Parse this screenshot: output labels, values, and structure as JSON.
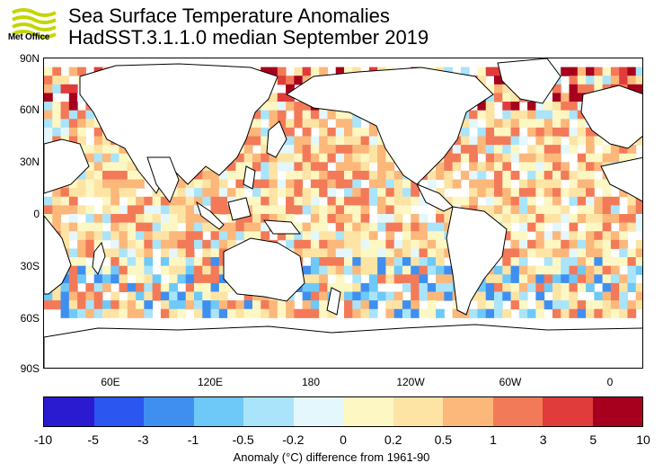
{
  "logo": {
    "text": "Met Office",
    "color": "#c4d600"
  },
  "title": {
    "line1": "Sea Surface Temperature Anomalies",
    "line2": "HadSST.3.1.1.0 median September 2019"
  },
  "map": {
    "lat_labels": [
      "90N",
      "60N",
      "30N",
      "0",
      "30S",
      "60S",
      "90S"
    ],
    "lon_labels": [
      "60E",
      "120E",
      "180",
      "120W",
      "60W",
      "0"
    ],
    "land_color": "#ffffff",
    "coast_color": "#000000"
  },
  "colorbar": {
    "ticks": [
      "-10",
      "-5",
      "-3",
      "-1",
      "-0.5",
      "-0.2",
      "0",
      "0.2",
      "0.5",
      "1",
      "3",
      "5",
      "10"
    ],
    "colors": [
      "#2a1bd1",
      "#2c56f0",
      "#3f8ff0",
      "#6ec9f8",
      "#a9e4fb",
      "#e4f7fc",
      "#fdf7c3",
      "#fde4a4",
      "#fcb77a",
      "#f37a58",
      "#e03c3c",
      "#a6001e"
    ],
    "caption": "Anomaly (°C) difference from 1961-90"
  }
}
